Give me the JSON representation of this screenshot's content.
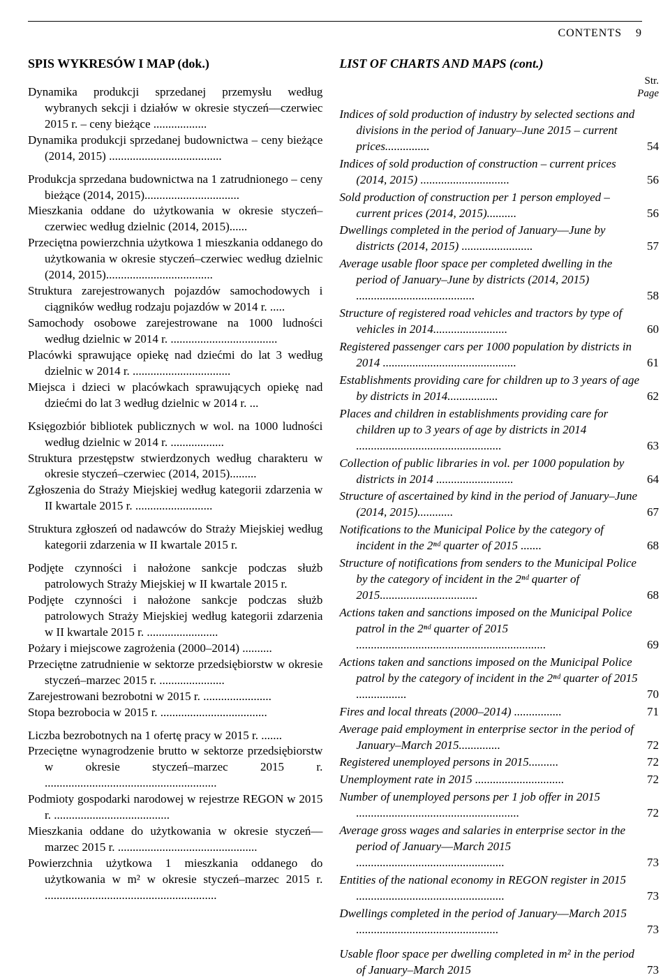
{
  "header": {
    "running": "CONTENTS",
    "pagenum": "9"
  },
  "left": {
    "title": "SPIS WYKRESÓW I MAP (dok.)",
    "entries": [
      "Dynamika produkcji sprzedanej przemysłu według wybranych sekcji i działów w okresie styczeń––czerwiec 2015 r. – ceny bieżące ..................",
      "Dynamika produkcji sprzedanej budownictwa – ceny bieżące (2014, 2015) ......................................",
      "",
      "Produkcja sprzedana budownictwa na 1 zatrudnionego – ceny bieżące (2014, 2015)................................",
      "Mieszkania oddane do użytkowania w okresie styczeń–czerwiec według dzielnic (2014, 2015)......",
      "Przeciętna powierzchnia użytkowa 1 mieszkania oddanego do użytkowania w okresie styczeń–czerwiec według dzielnic (2014, 2015)....................................",
      "Struktura zarejestrowanych pojazdów samochodowych i ciągników według rodzaju pojazdów w 2014 r. .....",
      "Samochody osobowe zarejestrowane na 1000 ludności według dzielnic w 2014 r. ....................................",
      "Placówki sprawujące opiekę nad dziećmi do lat 3 według dzielnic w 2014 r. .................................",
      "Miejsca i dzieci w placówkach sprawujących opiekę nad dziećmi do lat 3 według dzielnic w 2014 r.  ...",
      "",
      "Księgozbiór bibliotek publicznych w wol. na 1000 ludności według dzielnic w 2014 r. ..................",
      "Struktura przestępstw stwierdzonych według charakteru w okresie styczeń–czerwiec  (2014, 2015).........",
      "Zgłoszenia do Straży Miejskiej według kategorii zdarzenia w II kwartale 2015 r. ..........................",
      "",
      "Struktura zgłoszeń od nadawców do Straży Miejskiej według kategorii zdarzenia w II kwartale 2015 r.",
      "",
      "Podjęte czynności i nałożone sankcje podczas służb patrolowych Straży Miejskiej w II kwartale 2015 r.",
      "Podjęte czynności i nałożone sankcje podczas służb patrolowych Straży Miejskiej według kategorii zdarzenia w II kwartale 2015 r. ........................",
      "Pożary i miejscowe zagrożenia (2000–2014) ..........",
      "Przeciętne zatrudnienie w sektorze przedsiębiorstw w okresie styczeń–marzec 2015 r. ......................",
      "Zarejestrowani bezrobotni w 2015 r. .......................",
      "Stopa bezrobocia w 2015 r. ....................................",
      "",
      "Liczba bezrobotnych na 1 ofertę pracy w 2015 r. .......",
      "Przeciętne wynagrodzenie brutto w sektorze przedsiębiorstw w okresie styczeń–marzec 2015 r. ..........................................................",
      "Podmioty gospodarki narodowej w rejestrze REGON w 2015 r. .......................................",
      "Mieszkania oddane do użytkowania w okresie styczeń––marzec 2015 r. ...............................................",
      "Powierzchnia użytkowa 1 mieszkania oddanego do użytkowania w m² w okresie styczeń–marzec 2015 r. .........................................................."
    ]
  },
  "right": {
    "title": "LIST OF CHARTS AND MAPS (cont.)",
    "str": "Str.",
    "page": "Page",
    "entries": [
      {
        "text": "Indices of sold production of industry by selected sections and divisions in the period of January–June 2015 – current prices...............",
        "page": "54"
      },
      {
        "text": "Indices of sold production of construction – current prices (2014, 2015) ..............................",
        "page": "56"
      },
      {
        "text": "Sold production of construction per 1 person employed – current prices (2014, 2015)..........",
        "page": "56"
      },
      {
        "text": "Dwellings completed in the period of January––June by districts (2014, 2015) ........................",
        "page": "57"
      },
      {
        "text": "Average usable floor space per completed dwelling in the period of January–June by districts (2014, 2015) ........................................",
        "page": "58"
      },
      {
        "text": "Structure of registered road vehicles and tractors by type of vehicles in 2014.........................",
        "page": "60"
      },
      {
        "text": "Registered passenger cars per 1000 population by districts in 2014 .............................................",
        "page": "61"
      },
      {
        "text": "Establishments providing care for children up to 3 years of age by districts in 2014.................",
        "page": "62"
      },
      {
        "text": "Places and children in establishments providing care for children up to 3 years of age by districts in 2014 .................................................",
        "page": "63"
      },
      {
        "text": "Collection of public libraries in vol. per 1000 population by districts in 2014 ..........................",
        "page": "64"
      },
      {
        "text": "Structure of ascertained by kind in the period of January–June  (2014, 2015)............",
        "page": "67"
      },
      {
        "text": "Notifications to the Municipal Police by the category of incident in the 2ⁿᵈ quarter of 2015 .......",
        "page": "68"
      },
      {
        "text": "Structure of notifications from senders to the Municipal Police by the category of incident in the 2ⁿᵈ quarter of  2015.................................",
        "page": "68"
      },
      {
        "text": "Actions taken and sanctions imposed on the Municipal Police patrol in the 2ⁿᵈ quarter of 2015 ................................................................",
        "page": "69"
      },
      {
        "text": "Actions taken and sanctions imposed on the Municipal Police patrol by the category of incident in the 2ⁿᵈ quarter of 2015 .................",
        "page": "70"
      },
      {
        "text": "Fires and local threats (2000–2014) ................",
        "page": "71"
      },
      {
        "text": "Average paid employment in enterprise sector in the period of January–March 2015..............",
        "page": "72"
      },
      {
        "text": "Registered unemployed persons in 2015..........",
        "page": "72"
      },
      {
        "text": "Unemployment rate in 2015 ..............................",
        "page": "72"
      },
      {
        "text": "Number of unemployed persons per 1 job offer in 2015 .......................................................",
        "page": "72"
      },
      {
        "text": "Average gross wages and salaries in enterprise sector in the period of January––March 2015 ..................................................",
        "page": "73"
      },
      {
        "text": "Entities of the national economy in REGON register in 2015 ..................................................",
        "page": "73"
      },
      {
        "text": "Dwellings completed in the period of January––March 2015 ................................................",
        "page": "73"
      },
      {
        "text": "",
        "page": ""
      },
      {
        "text": "Usable floor space per dwelling completed in m² in the period of January–March 2015",
        "page": "73"
      }
    ]
  }
}
